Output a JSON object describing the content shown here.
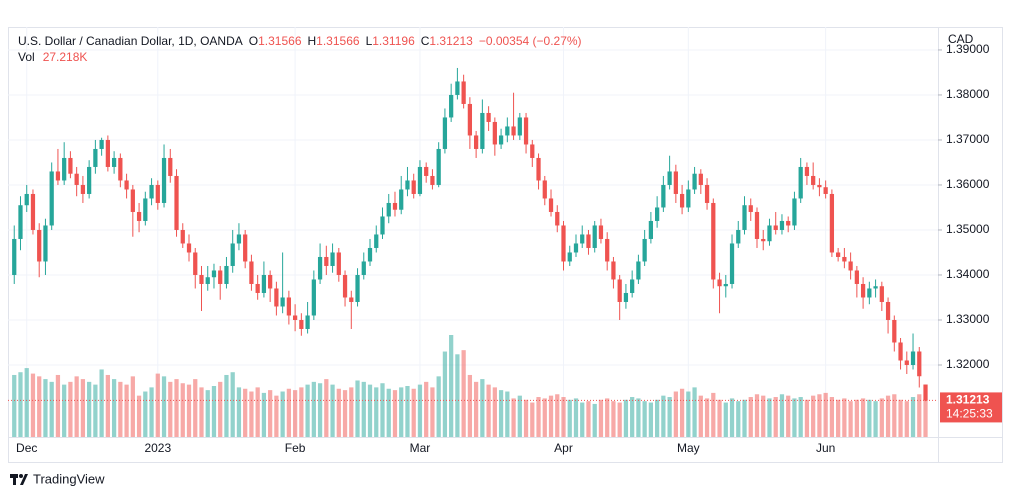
{
  "chart_data": {
    "type": "candlestick",
    "title": "U.S. Dollar / Canadian Dollar, 1D, OANDA",
    "ohlc_labels": [
      "O",
      "H",
      "L",
      "C"
    ],
    "change_label": "−0.00354 (−0.27%)",
    "volume_title": "Vol",
    "last_volume_label": "27.218K",
    "currency": "CAD",
    "countdown": "14:25:33",
    "brand": "TradingView",
    "up_color": "#26a69a",
    "down_color": "#ef5350",
    "grid": true,
    "xlim": [
      -1,
      148
    ],
    "xticks": [
      {
        "value": 2,
        "label": "Dec"
      },
      {
        "value": 23,
        "label": "2023"
      },
      {
        "value": 45,
        "label": "Feb"
      },
      {
        "value": 65,
        "label": "Mar"
      },
      {
        "value": 88,
        "label": "Apr"
      },
      {
        "value": 108,
        "label": "May"
      },
      {
        "value": 130,
        "label": "Jun"
      }
    ],
    "ylim": [
      1.304,
      1.3951
    ],
    "yticks": [
      {
        "value": 1.32,
        "label": "1.32000"
      },
      {
        "value": 1.33,
        "label": "1.33000"
      },
      {
        "value": 1.34,
        "label": "1.34000"
      },
      {
        "value": 1.35,
        "label": "1.35000"
      },
      {
        "value": 1.36,
        "label": "1.36000"
      },
      {
        "value": 1.37,
        "label": "1.37000"
      },
      {
        "value": 1.38,
        "label": "1.38000"
      },
      {
        "value": 1.39,
        "label": "1.39000"
      }
    ],
    "open": [
      1.34,
      1.348,
      1.3555,
      1.358,
      1.35,
      1.343,
      1.351,
      1.363,
      1.361,
      1.366,
      1.3625,
      1.36,
      1.358,
      1.364,
      1.368,
      1.37,
      1.364,
      1.366,
      1.361,
      1.359,
      1.354,
      1.352,
      1.357,
      1.36,
      1.356,
      1.366,
      1.362,
      1.35,
      1.347,
      1.345,
      1.34,
      1.338,
      1.3395,
      1.341,
      1.338,
      1.342,
      1.347,
      1.349,
      1.343,
      1.338,
      1.336,
      1.34,
      1.337,
      1.333,
      1.335,
      1.331,
      1.33,
      1.328,
      1.331,
      1.339,
      1.344,
      1.342,
      1.345,
      1.34,
      1.335,
      1.334,
      1.34,
      1.343,
      1.346,
      1.349,
      1.353,
      1.356,
      1.3545,
      1.359,
      1.361,
      1.358,
      1.364,
      1.362,
      1.36,
      1.368,
      1.375,
      1.38,
      1.383,
      1.378,
      1.371,
      1.368,
      1.376,
      1.374,
      1.369,
      1.371,
      1.373,
      1.371,
      1.375,
      1.369,
      1.366,
      1.361,
      1.357,
      1.354,
      1.351,
      1.343,
      1.345,
      1.347,
      1.349,
      1.346,
      1.351,
      1.348,
      1.343,
      1.339,
      1.334,
      1.336,
      1.339,
      1.343,
      1.348,
      1.352,
      1.355,
      1.36,
      1.363,
      1.358,
      1.355,
      1.359,
      1.3625,
      1.36,
      1.356,
      1.339,
      1.3375,
      1.338,
      1.347,
      1.35,
      1.3555,
      1.354,
      1.348,
      1.3475,
      1.351,
      1.35,
      1.352,
      1.351,
      1.357,
      1.364,
      1.362,
      1.36,
      1.3595,
      1.358,
      1.345,
      1.344,
      1.343,
      1.341,
      1.338,
      1.335,
      1.337,
      1.3375,
      1.334,
      1.33,
      1.325,
      1.321,
      1.32,
      1.323,
      1.31566
    ],
    "high": [
      1.351,
      1.3575,
      1.36,
      1.359,
      1.3515,
      1.3525,
      1.365,
      1.368,
      1.3695,
      1.3675,
      1.364,
      1.362,
      1.3655,
      1.37,
      1.3705,
      1.371,
      1.3675,
      1.367,
      1.3625,
      1.36,
      1.356,
      1.3585,
      1.3615,
      1.361,
      1.369,
      1.368,
      1.3635,
      1.3515,
      1.349,
      1.346,
      1.342,
      1.342,
      1.3425,
      1.342,
      1.344,
      1.35,
      1.3515,
      1.35,
      1.3445,
      1.34,
      1.343,
      1.341,
      1.3385,
      1.345,
      1.3365,
      1.3335,
      1.3315,
      1.334,
      1.341,
      1.347,
      1.3465,
      1.347,
      1.346,
      1.341,
      1.3365,
      1.3415,
      1.345,
      1.348,
      1.351,
      1.355,
      1.358,
      1.3585,
      1.362,
      1.364,
      1.3625,
      1.3655,
      1.365,
      1.3635,
      1.3695,
      1.377,
      1.3825,
      1.386,
      1.3845,
      1.3795,
      1.372,
      1.379,
      1.3775,
      1.375,
      1.3725,
      1.375,
      1.3805,
      1.376,
      1.376,
      1.37,
      1.367,
      1.362,
      1.359,
      1.3555,
      1.352,
      1.3465,
      1.349,
      1.351,
      1.35,
      1.352,
      1.3525,
      1.3495,
      1.344,
      1.34,
      1.338,
      1.341,
      1.3445,
      1.35,
      1.354,
      1.3575,
      1.362,
      1.3665,
      1.3645,
      1.36,
      1.361,
      1.364,
      1.3635,
      1.3615,
      1.357,
      1.3405,
      1.34,
      1.349,
      1.352,
      1.3575,
      1.357,
      1.355,
      1.35,
      1.3525,
      1.354,
      1.3535,
      1.353,
      1.3585,
      1.366,
      1.365,
      1.365,
      1.3615,
      1.361,
      1.359,
      1.346,
      1.346,
      1.345,
      1.342,
      1.3395,
      1.3385,
      1.339,
      1.3385,
      1.335,
      1.331,
      1.326,
      1.323,
      1.327,
      1.324,
      1.31566
    ],
    "low": [
      1.338,
      1.3455,
      1.354,
      1.349,
      1.3395,
      1.34,
      1.35,
      1.36,
      1.36,
      1.3615,
      1.3575,
      1.356,
      1.357,
      1.3625,
      1.3665,
      1.363,
      1.3625,
      1.3595,
      1.357,
      1.3485,
      1.3495,
      1.351,
      1.3555,
      1.3545,
      1.355,
      1.3605,
      1.3485,
      1.346,
      1.343,
      1.337,
      1.332,
      1.3365,
      1.337,
      1.3345,
      1.337,
      1.3405,
      1.3455,
      1.3415,
      1.3365,
      1.3345,
      1.335,
      1.334,
      1.331,
      1.3315,
      1.329,
      1.3275,
      1.3265,
      1.327,
      1.33,
      1.338,
      1.34,
      1.3405,
      1.3385,
      1.333,
      1.328,
      1.333,
      1.339,
      1.342,
      1.345,
      1.348,
      1.3515,
      1.353,
      1.3535,
      1.3575,
      1.357,
      1.3575,
      1.3605,
      1.359,
      1.3595,
      1.367,
      1.374,
      1.379,
      1.377,
      1.368,
      1.366,
      1.367,
      1.372,
      1.3665,
      1.368,
      1.3695,
      1.37,
      1.37,
      1.367,
      1.364,
      1.359,
      1.3555,
      1.353,
      1.3495,
      1.341,
      1.342,
      1.344,
      1.346,
      1.3445,
      1.345,
      1.347,
      1.341,
      1.337,
      1.33,
      1.3325,
      1.335,
      1.338,
      1.342,
      1.347,
      1.3505,
      1.354,
      1.359,
      1.356,
      1.3535,
      1.354,
      1.358,
      1.358,
      1.3545,
      1.337,
      1.3315,
      1.335,
      1.337,
      1.346,
      1.349,
      1.352,
      1.346,
      1.3455,
      1.3465,
      1.349,
      1.349,
      1.3495,
      1.35,
      1.356,
      1.36,
      1.359,
      1.3575,
      1.357,
      1.344,
      1.343,
      1.3415,
      1.339,
      1.335,
      1.3325,
      1.3335,
      1.335,
      1.332,
      1.327,
      1.323,
      1.319,
      1.318,
      1.319,
      1.315,
      1.31196
    ],
    "close": [
      1.348,
      1.3555,
      1.358,
      1.35,
      1.343,
      1.351,
      1.363,
      1.361,
      1.366,
      1.3625,
      1.36,
      1.358,
      1.364,
      1.368,
      1.37,
      1.364,
      1.366,
      1.361,
      1.359,
      1.354,
      1.352,
      1.357,
      1.36,
      1.356,
      1.366,
      1.362,
      1.35,
      1.347,
      1.345,
      1.34,
      1.338,
      1.3395,
      1.341,
      1.338,
      1.342,
      1.347,
      1.349,
      1.343,
      1.338,
      1.336,
      1.34,
      1.337,
      1.333,
      1.335,
      1.331,
      1.33,
      1.328,
      1.331,
      1.339,
      1.344,
      1.342,
      1.345,
      1.34,
      1.335,
      1.334,
      1.34,
      1.343,
      1.346,
      1.349,
      1.353,
      1.356,
      1.3545,
      1.359,
      1.361,
      1.358,
      1.364,
      1.362,
      1.36,
      1.368,
      1.375,
      1.38,
      1.383,
      1.378,
      1.371,
      1.368,
      1.376,
      1.374,
      1.369,
      1.371,
      1.373,
      1.371,
      1.375,
      1.369,
      1.366,
      1.361,
      1.357,
      1.354,
      1.351,
      1.343,
      1.345,
      1.347,
      1.349,
      1.346,
      1.351,
      1.348,
      1.343,
      1.339,
      1.334,
      1.336,
      1.339,
      1.343,
      1.348,
      1.352,
      1.355,
      1.36,
      1.363,
      1.358,
      1.355,
      1.359,
      1.3625,
      1.36,
      1.356,
      1.339,
      1.3375,
      1.338,
      1.347,
      1.35,
      1.3555,
      1.354,
      1.348,
      1.3475,
      1.351,
      1.35,
      1.352,
      1.351,
      1.357,
      1.364,
      1.362,
      1.36,
      1.3595,
      1.358,
      1.345,
      1.344,
      1.343,
      1.341,
      1.338,
      1.335,
      1.337,
      1.3375,
      1.334,
      1.33,
      1.325,
      1.321,
      1.32,
      1.323,
      1.3175,
      1.31213
    ],
    "volume": [
      45,
      47,
      50,
      46,
      44,
      42,
      40,
      45,
      38,
      40,
      44,
      42,
      40,
      38,
      49,
      45,
      42,
      40,
      38,
      44,
      30,
      33,
      36,
      46,
      44,
      40,
      42,
      39,
      38,
      42,
      36,
      34,
      37,
      40,
      45,
      47,
      36,
      35,
      33,
      36,
      32,
      34,
      30,
      33,
      35,
      34,
      36,
      38,
      40,
      39,
      42,
      38,
      35,
      34,
      36,
      41,
      40,
      38,
      36,
      39,
      35,
      34,
      36,
      37,
      35,
      38,
      40,
      36,
      44,
      62,
      74,
      60,
      63,
      45,
      40,
      42,
      38,
      36,
      34,
      33,
      28,
      30,
      27,
      25,
      29,
      28,
      30,
      31,
      29,
      27,
      28,
      25,
      26,
      24,
      27,
      28,
      26,
      25,
      27,
      29,
      28,
      26,
      25,
      27,
      30,
      29,
      33,
      35,
      33,
      36,
      30,
      28,
      32,
      27,
      25,
      28,
      26,
      27,
      29,
      31,
      30,
      28,
      29,
      31,
      30,
      28,
      29,
      27,
      30,
      31,
      32,
      29,
      27,
      28,
      26,
      27,
      28,
      27,
      26,
      28,
      30,
      31,
      27,
      26,
      29,
      31,
      27.218
    ]
  }
}
